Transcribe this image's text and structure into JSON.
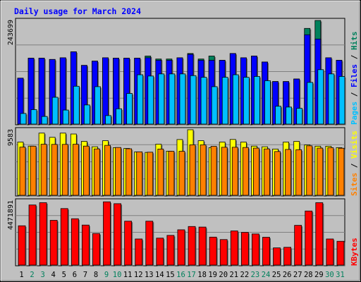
{
  "title": "Daily usage for March 2024",
  "labels": {
    "hits": "Hits",
    "files": "Files",
    "pages": "Pages",
    "visits": "Visits",
    "sites": "Sites",
    "kbytes": "KBytes",
    "sep": " / "
  },
  "colors": {
    "background": "#c0c0c0",
    "title": "#0000ff",
    "hits": "#00805c",
    "files": "#0000ff",
    "pages": "#00c0ff",
    "visits": "#ffff00",
    "sites": "#ff8000",
    "kbytes": "#ff0000",
    "weekend_day": "#00805c",
    "weekday": "#000000"
  },
  "chart_data": [
    {
      "type": "bar",
      "panel": "hits-files-pages",
      "categories": [
        "1",
        "2",
        "3",
        "4",
        "5",
        "6",
        "7",
        "8",
        "9",
        "10",
        "11",
        "12",
        "13",
        "14",
        "15",
        "16",
        "17",
        "18",
        "19",
        "20",
        "21",
        "22",
        "23",
        "24",
        "25",
        "26",
        "27",
        "28",
        "29",
        "30",
        "31"
      ],
      "ymax_label": "243699",
      "ymax": 243699,
      "series": [
        {
          "name": "Hits",
          "values": [
            108000,
            155000,
            155000,
            152000,
            156000,
            170000,
            138000,
            148000,
            156000,
            155000,
            155000,
            155000,
            160000,
            153000,
            153000,
            156000,
            166000,
            153000,
            160000,
            150000,
            166000,
            156000,
            160000,
            146000,
            100000,
            100000,
            106000,
            225000,
            243699,
            156000,
            150000
          ]
        },
        {
          "name": "Files",
          "values": [
            108000,
            155000,
            155000,
            152000,
            156000,
            170000,
            138000,
            148000,
            156000,
            155000,
            155000,
            155000,
            156000,
            150000,
            150000,
            156000,
            164000,
            150000,
            150000,
            150000,
            166000,
            156000,
            160000,
            146000,
            100000,
            100000,
            106000,
            210000,
            200000,
            156000,
            150000
          ]
        },
        {
          "name": "Pages",
          "values": [
            25000,
            34000,
            18000,
            63000,
            33000,
            89000,
            45000,
            88000,
            20000,
            36000,
            72000,
            116000,
            113000,
            118000,
            118000,
            118000,
            114000,
            110000,
            88000,
            110000,
            116000,
            110000,
            112000,
            102000,
            42000,
            40000,
            37000,
            98000,
            128000,
            118000,
            112000
          ]
        }
      ]
    },
    {
      "type": "bar",
      "panel": "visits-sites",
      "categories": [
        "1",
        "2",
        "3",
        "4",
        "5",
        "6",
        "7",
        "8",
        "9",
        "10",
        "11",
        "12",
        "13",
        "14",
        "15",
        "16",
        "17",
        "18",
        "19",
        "20",
        "21",
        "22",
        "23",
        "24",
        "25",
        "26",
        "27",
        "28",
        "29",
        "30",
        "31"
      ],
      "ymax_label": "9583",
      "ymax": 9583,
      "series": [
        {
          "name": "Visits",
          "values": [
            7780,
            7190,
            9090,
            8470,
            9090,
            8960,
            7880,
            7090,
            7980,
            6970,
            6850,
            6350,
            6270,
            7470,
            6450,
            8150,
            9583,
            7980,
            6970,
            7780,
            8160,
            7780,
            7190,
            7090,
            6760,
            7780,
            7880,
            7370,
            7180,
            7170,
            6970
          ]
        },
        {
          "name": "Sites",
          "values": [
            7040,
            7180,
            7460,
            7440,
            7440,
            7460,
            7190,
            6780,
            7300,
            6990,
            6800,
            6350,
            6300,
            6760,
            6440,
            6430,
            7380,
            7370,
            7160,
            7020,
            7020,
            6990,
            6900,
            6780,
            6400,
            6700,
            6660,
            7230,
            6900,
            6960,
            6880
          ]
        }
      ]
    },
    {
      "type": "bar",
      "panel": "kbytes",
      "categories": [
        "1",
        "2",
        "3",
        "4",
        "5",
        "6",
        "7",
        "8",
        "9",
        "10",
        "11",
        "12",
        "13",
        "14",
        "15",
        "16",
        "17",
        "18",
        "19",
        "20",
        "21",
        "22",
        "23",
        "24",
        "25",
        "26",
        "27",
        "28",
        "29",
        "30",
        "31"
      ],
      "ymax_label": "4471891",
      "ymax": 4471891,
      "series": [
        {
          "name": "KBytes",
          "values": [
            2740000,
            4190000,
            4350000,
            3120000,
            3940000,
            3230000,
            2790000,
            2200000,
            4410000,
            4280000,
            3060000,
            1820000,
            3060000,
            1880000,
            2070000,
            2460000,
            2690000,
            2650000,
            1950000,
            1780000,
            2380000,
            2280000,
            2170000,
            1940000,
            1200000,
            1240000,
            2770000,
            3770000,
            4350000,
            1820000,
            1660000
          ]
        }
      ]
    }
  ]
}
